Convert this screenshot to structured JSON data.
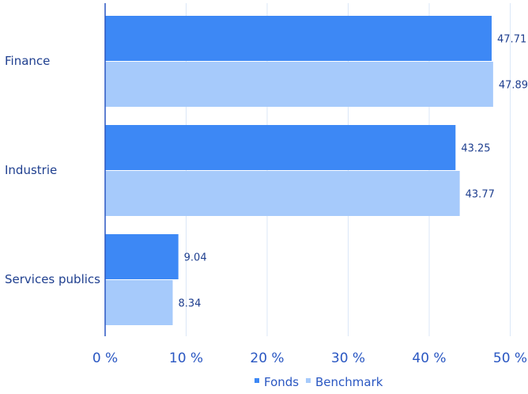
{
  "chart_data": {
    "type": "bar",
    "orientation": "horizontal",
    "categories": [
      "Finance",
      "Industrie",
      "Services publics"
    ],
    "series": [
      {
        "name": "Fonds",
        "values": [
          47.71,
          43.25,
          9.04
        ],
        "color": "#3d88f5"
      },
      {
        "name": "Benchmark",
        "values": [
          47.89,
          43.77,
          8.34
        ],
        "color": "#a6cafb"
      }
    ],
    "value_labels": [
      [
        "47.71",
        "43.25",
        "9.04"
      ],
      [
        "47.89",
        "43.77",
        "8.34"
      ]
    ],
    "x_ticks": [
      0,
      10,
      20,
      30,
      40,
      50
    ],
    "x_tick_labels": [
      "0 %",
      "10 %",
      "20 %",
      "30 %",
      "40 %",
      "50 %"
    ],
    "xlim": [
      0,
      52
    ],
    "grid": true,
    "legend": {
      "position": "bottom-center",
      "entries": [
        "Fonds",
        "Benchmark"
      ]
    },
    "colors": {
      "axis": "#2a57c2",
      "grid": "#dbe7f7",
      "text": "#1f3f8f"
    }
  }
}
